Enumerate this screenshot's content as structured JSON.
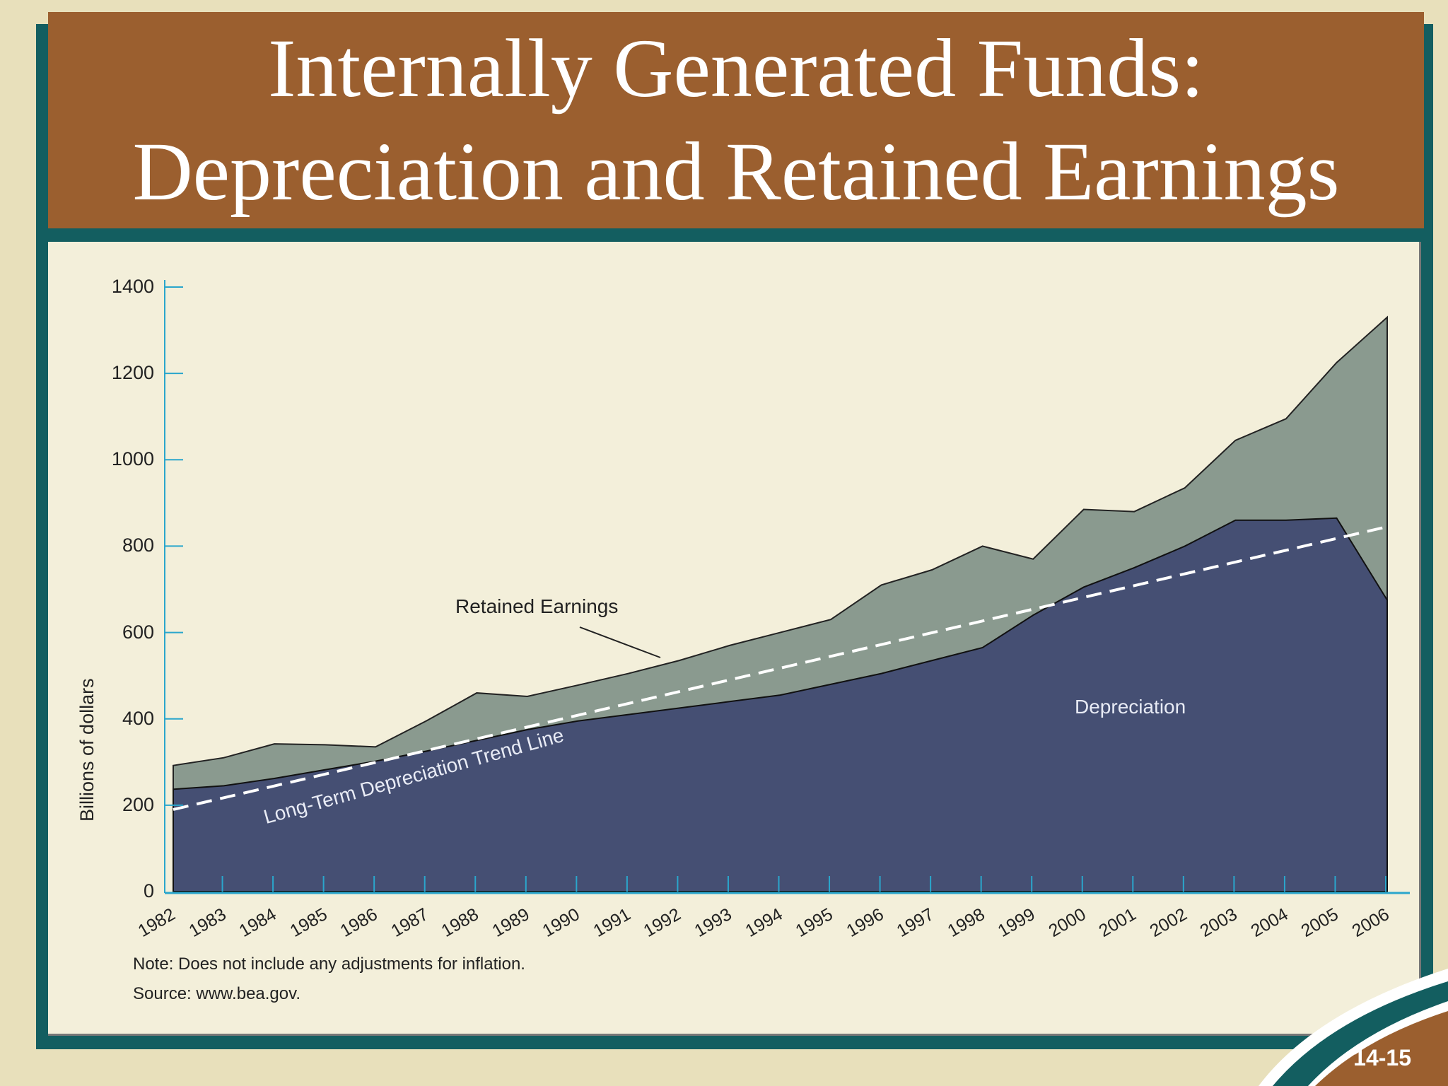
{
  "slide": {
    "title_line1": "Internally Generated Funds:",
    "title_line2": "Depreciation and Retained Earnings",
    "slide_number": "14-15",
    "colors": {
      "background": "#e8e0bb",
      "frame_teal": "#135e60",
      "title_brown": "#9b5f2f",
      "panel": "#f3efda",
      "depreciation_fill": "#454f73",
      "retained_fill": "#8a9a8f",
      "axis": "#2aa6cc",
      "trend": "#ffffff"
    }
  },
  "chart": {
    "y_axis_title": "Billions of dollars",
    "y_ticks": [
      "0",
      "200",
      "400",
      "600",
      "800",
      "1000",
      "1200",
      "1400"
    ],
    "x_ticks": [
      "1982",
      "1983",
      "1984",
      "1985",
      "1986",
      "1987",
      "1988",
      "1989",
      "1990",
      "1991",
      "1992",
      "1993",
      "1994",
      "1995",
      "1996",
      "1997",
      "1998",
      "1999",
      "2000",
      "2001",
      "2002",
      "2003",
      "2004",
      "2005",
      "2006"
    ],
    "label_retained": "Retained Earnings",
    "label_depreciation": "Depreciation",
    "label_trend": "Long-Term Depreciation Trend Line",
    "note": "Note: Does not include any adjustments for inflation.",
    "source": "Source: www.bea.gov."
  },
  "chart_data": {
    "type": "area",
    "title": "Internally Generated Funds: Depreciation and Retained Earnings",
    "xlabel": "",
    "ylabel": "Billions of dollars",
    "ylim": [
      0,
      1400
    ],
    "yticks": [
      0,
      200,
      400,
      600,
      800,
      1000,
      1200,
      1400
    ],
    "grid": false,
    "stacked": true,
    "categories": [
      "1982",
      "1983",
      "1984",
      "1985",
      "1986",
      "1987",
      "1988",
      "1989",
      "1990",
      "1991",
      "1992",
      "1993",
      "1994",
      "1995",
      "1996",
      "1997",
      "1998",
      "1999",
      "2000",
      "2001",
      "2002",
      "2003",
      "2004",
      "2005",
      "2006"
    ],
    "series": [
      {
        "name": "Depreciation",
        "values": [
          237,
          245,
          262,
          282,
          302,
          325,
          350,
          375,
          395,
          410,
          425,
          440,
          455,
          480,
          505,
          535,
          565,
          640,
          705,
          750,
          800,
          860,
          860,
          865,
          675
        ]
      },
      {
        "name": "Retained Earnings",
        "values": [
          55,
          65,
          80,
          58,
          33,
          70,
          110,
          77,
          83,
          95,
          110,
          130,
          145,
          150,
          205,
          210,
          235,
          130,
          180,
          130,
          135,
          185,
          235,
          360,
          655
        ]
      }
    ],
    "totals": [
      292,
      310,
      342,
      340,
      335,
      395,
      460,
      452,
      478,
      505,
      535,
      570,
      600,
      630,
      710,
      745,
      800,
      770,
      885,
      880,
      935,
      1045,
      1095,
      1225,
      1330
    ],
    "trend_line": {
      "name": "Long-Term Depreciation Trend Line",
      "start": {
        "x": "1982",
        "y": 190
      },
      "end": {
        "x": "2006",
        "y": 845
      },
      "style": "dashed"
    },
    "annotations": [
      "Retained Earnings",
      "Depreciation",
      "Long-Term Depreciation Trend Line"
    ],
    "notes": [
      "Note: Does not include any adjustments for inflation.",
      "Source: www.bea.gov."
    ]
  }
}
